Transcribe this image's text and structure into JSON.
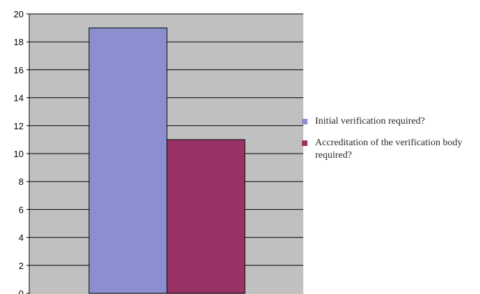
{
  "chart_data": {
    "type": "bar",
    "title": "",
    "xlabel": "",
    "ylabel": "",
    "ylim": [
      0,
      20
    ],
    "yticks": [
      0,
      2,
      4,
      6,
      8,
      10,
      12,
      14,
      16,
      18,
      20
    ],
    "grid": true,
    "legend_position": "right",
    "series": [
      {
        "name": "Initial verification required?",
        "value": 19,
        "color": "#8c8fcf"
      },
      {
        "name": "Accreditation of the verification body required?",
        "value": 11,
        "color": "#993366"
      }
    ],
    "colors": {
      "plot_background": "#c0c0c0",
      "gridline": "#000000"
    }
  }
}
